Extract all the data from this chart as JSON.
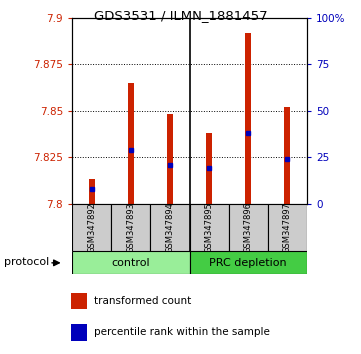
{
  "title": "GDS3531 / ILMN_1881457",
  "samples": [
    "GSM347892",
    "GSM347893",
    "GSM347894",
    "GSM347895",
    "GSM347896",
    "GSM347897"
  ],
  "bar_base": 7.8,
  "bar_tops": [
    7.813,
    7.865,
    7.848,
    7.838,
    7.892,
    7.852
  ],
  "percentile_ranks": [
    7.808,
    7.829,
    7.821,
    7.819,
    7.838,
    7.824
  ],
  "ylim": [
    7.8,
    7.9
  ],
  "yticks_left": [
    7.8,
    7.825,
    7.85,
    7.875,
    7.9
  ],
  "yticks_right": [
    0,
    25,
    50,
    75,
    100
  ],
  "bar_color": "#cc2200",
  "dot_color": "#0000bb",
  "control_color": "#99ee99",
  "prc_color": "#44cc44",
  "group_label_control": "control",
  "group_label_prc": "PRC depletion",
  "protocol_label": "protocol",
  "legend_bar": "transformed count",
  "legend_dot": "percentile rank within the sample",
  "bar_width": 0.15,
  "sample_box_color": "#cccccc",
  "background_color": "#ffffff",
  "axis_color_left": "#cc2200",
  "axis_color_right": "#0000bb"
}
